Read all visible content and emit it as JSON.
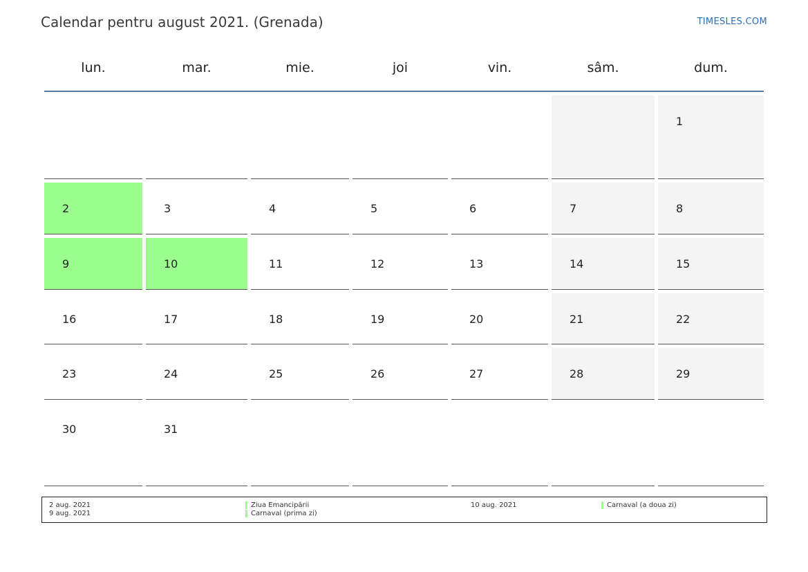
{
  "header": {
    "title": "Calendar pentru august 2021. (Grenada)",
    "site": "TIMESLES.COM"
  },
  "weekdays": [
    "lun.",
    "mar.",
    "mie.",
    "joi",
    "vin.",
    "sâm.",
    "dum."
  ],
  "colors": {
    "holiday": "#9afd8e",
    "weekend": "#f4f4f4",
    "header_line": "#557799",
    "site_link": "#2a6fb4"
  },
  "weeks": [
    [
      "",
      "",
      "",
      "",
      "",
      "",
      "1"
    ],
    [
      "2",
      "3",
      "4",
      "5",
      "6",
      "7",
      "8"
    ],
    [
      "9",
      "10",
      "11",
      "12",
      "13",
      "14",
      "15"
    ],
    [
      "16",
      "17",
      "18",
      "19",
      "20",
      "21",
      "22"
    ],
    [
      "23",
      "24",
      "25",
      "26",
      "27",
      "28",
      "29"
    ],
    [
      "30",
      "31",
      "",
      "",
      "",
      "",
      ""
    ]
  ],
  "holiday_days": [
    "2",
    "9",
    "10"
  ],
  "legend": {
    "left": {
      "dates": [
        "2 aug. 2021",
        "9 aug. 2021"
      ],
      "names": [
        "Ziua Emancipării",
        "Carnaval (prima zi)"
      ]
    },
    "right": {
      "dates": [
        "10 aug. 2021"
      ],
      "names": [
        "Carnaval (a doua zi)"
      ]
    }
  }
}
